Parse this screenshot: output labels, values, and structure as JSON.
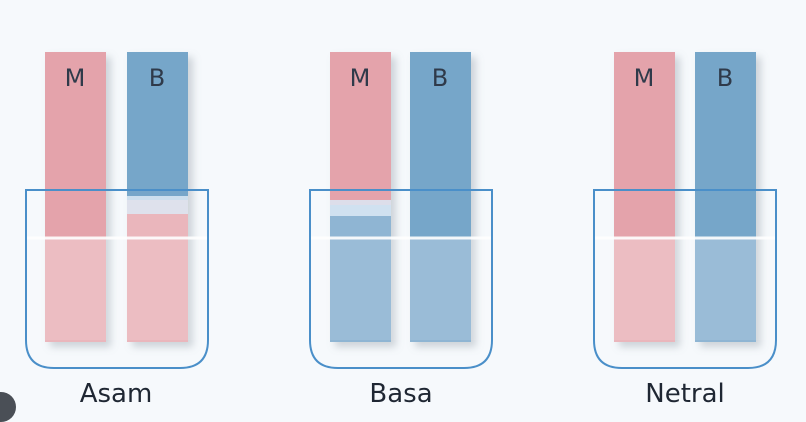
{
  "panels": [
    {
      "label": "Asam",
      "strips": [
        {
          "letter": "M",
          "top_color": "#e4a3ab",
          "bottom_color": "#eab6bc",
          "changed": false
        },
        {
          "letter": "B",
          "top_color": "#76a6c9",
          "bottom_color": "#eab6bc",
          "changed": true
        }
      ]
    },
    {
      "label": "Basa",
      "strips": [
        {
          "letter": "M",
          "top_color": "#e4a3ab",
          "bottom_color": "#8fb5d3",
          "changed": true
        },
        {
          "letter": "B",
          "top_color": "#76a6c9",
          "bottom_color": "#8fb5d3",
          "changed": false
        }
      ]
    },
    {
      "label": "Netral",
      "strips": [
        {
          "letter": "M",
          "top_color": "#e4a3ab",
          "bottom_color": "#eab6bc",
          "changed": false
        },
        {
          "letter": "B",
          "top_color": "#76a6c9",
          "bottom_color": "#8fb5d3",
          "changed": false
        }
      ]
    }
  ],
  "colors": {
    "beaker_outline": "#4a8fc9",
    "liquid_line": "#ffffff",
    "background": "#f6f9fc"
  }
}
